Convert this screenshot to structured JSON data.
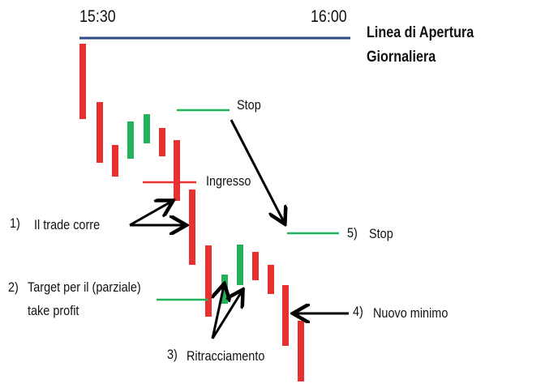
{
  "times": {
    "start": "15:30",
    "end": "16:00"
  },
  "open_line_label": [
    "Linea di Apertura",
    "Giornaliera"
  ],
  "labels": {
    "stop_top": "Stop",
    "entry": "Ingresso",
    "trade_runs": "Il trade corre",
    "trade_runs_num": "1)",
    "target_num": "2)",
    "target": [
      "Target per il (parziale)",
      "take profit"
    ],
    "retrace_num": "3)",
    "retrace": "Ritracciamento",
    "new_low_num": "4)",
    "new_low": "Nuovo minimo",
    "stop2_num": "5)",
    "stop2": "Stop"
  },
  "colors": {
    "bear": "#e8302e",
    "bull": "#22b25c",
    "open_line": "#2e4a86",
    "arrow": "#000000"
  },
  "candles": [
    "bear",
    "bear",
    "bear",
    "bull",
    "bull",
    "bear",
    "bear",
    "bear",
    "bear",
    "bull",
    "bull",
    "bear",
    "bear",
    "bear",
    "bear"
  ]
}
